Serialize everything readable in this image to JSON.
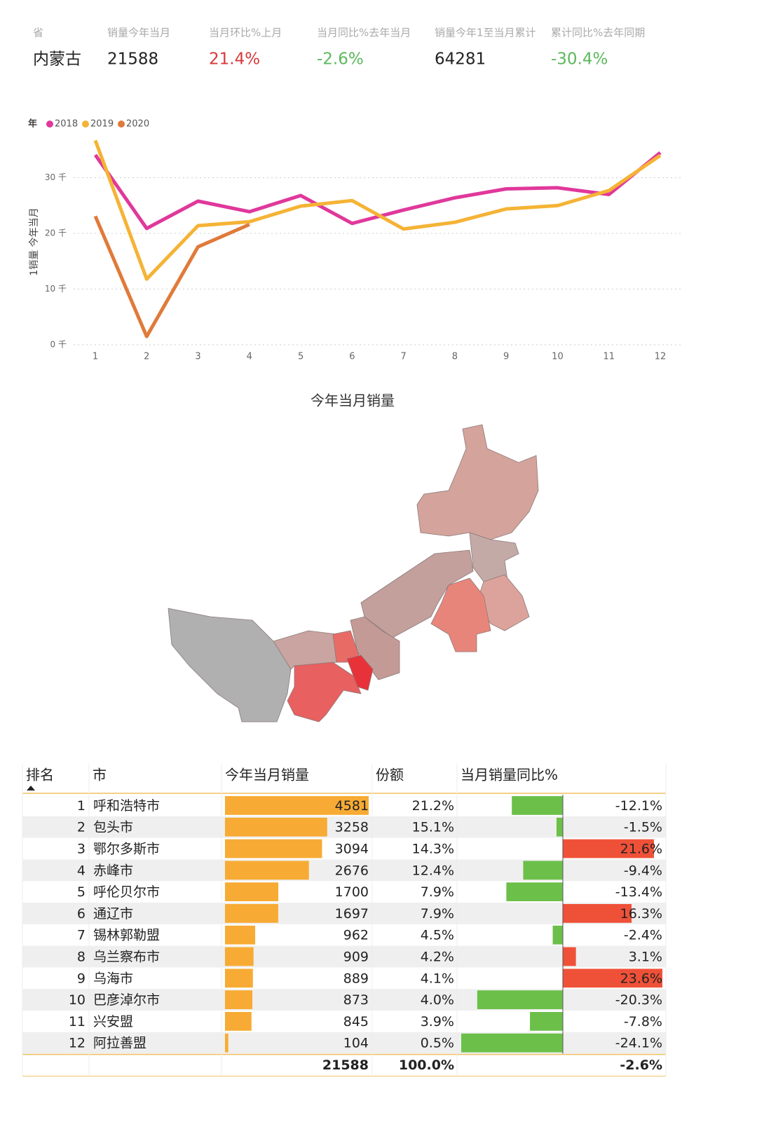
{
  "kpis": {
    "labels": [
      "省",
      "销量今年当月",
      "当月环比%上月",
      "当月同比%去年当月",
      "销量今年1至当月累计",
      "累计同比%去年同期"
    ],
    "values": [
      "内蒙古",
      "21588",
      "21.4%",
      "-2.6%",
      "64281",
      "-30.4%"
    ],
    "colors": [
      "#222222",
      "#222222",
      "#d8383a",
      "#5cb85c",
      "#222222",
      "#5cb85c"
    ]
  },
  "chart_data": {
    "type": "line",
    "legend_title": "年",
    "ylabel": "1销量 今年当月",
    "categories": [
      "1",
      "2",
      "3",
      "4",
      "5",
      "6",
      "7",
      "8",
      "9",
      "10",
      "11",
      "12"
    ],
    "series": [
      {
        "name": "2018",
        "color": "#e0389b",
        "values": [
          34100,
          20900,
          25800,
          23900,
          26800,
          21800,
          24200,
          26400,
          28000,
          28200,
          27000,
          34500
        ]
      },
      {
        "name": "2019",
        "color": "#f5b335",
        "values": [
          36700,
          11800,
          21400,
          22100,
          24900,
          25900,
          20800,
          22000,
          24400,
          25000,
          27700,
          34000
        ]
      },
      {
        "name": "2020",
        "color": "#e07a3a",
        "values": [
          23100,
          1500,
          17600,
          21600,
          null,
          null,
          null,
          null,
          null,
          null,
          null,
          null
        ]
      }
    ],
    "ylim": [
      0,
      37000
    ],
    "yticks": [
      {
        "value": 0,
        "label": "0 千"
      },
      {
        "value": 10000,
        "label": "10 千"
      },
      {
        "value": 20000,
        "label": "20 千"
      },
      {
        "value": 30000,
        "label": "30 千"
      }
    ],
    "grid": true
  },
  "map": {
    "title": "今年当月销量"
  },
  "table": {
    "headers": [
      "排名",
      "市",
      "今年当月销量",
      "份额",
      "当月销量同比%"
    ],
    "rows": [
      {
        "rank": "1",
        "city": "呼和浩特市",
        "sales": 4581,
        "share": "21.2%",
        "yoy": -12.1,
        "yoy_label": "-12.1%"
      },
      {
        "rank": "2",
        "city": "包头市",
        "sales": 3258,
        "share": "15.1%",
        "yoy": -1.5,
        "yoy_label": "-1.5%"
      },
      {
        "rank": "3",
        "city": "鄂尔多斯市",
        "sales": 3094,
        "share": "14.3%",
        "yoy": 21.6,
        "yoy_label": "21.6%"
      },
      {
        "rank": "4",
        "city": "赤峰市",
        "sales": 2676,
        "share": "12.4%",
        "yoy": -9.4,
        "yoy_label": "-9.4%"
      },
      {
        "rank": "5",
        "city": "呼伦贝尔市",
        "sales": 1700,
        "share": "7.9%",
        "yoy": -13.4,
        "yoy_label": "-13.4%"
      },
      {
        "rank": "6",
        "city": "通辽市",
        "sales": 1697,
        "share": "7.9%",
        "yoy": 16.3,
        "yoy_label": "16.3%"
      },
      {
        "rank": "7",
        "city": "锡林郭勒盟",
        "sales": 962,
        "share": "4.5%",
        "yoy": -2.4,
        "yoy_label": "-2.4%"
      },
      {
        "rank": "8",
        "city": "乌兰察布市",
        "sales": 909,
        "share": "4.2%",
        "yoy": 3.1,
        "yoy_label": "3.1%"
      },
      {
        "rank": "9",
        "city": "乌海市",
        "sales": 889,
        "share": "4.1%",
        "yoy": 23.6,
        "yoy_label": "23.6%"
      },
      {
        "rank": "10",
        "city": "巴彦淖尔市",
        "sales": 873,
        "share": "4.0%",
        "yoy": -20.3,
        "yoy_label": "-20.3%"
      },
      {
        "rank": "11",
        "city": "兴安盟",
        "sales": 845,
        "share": "3.9%",
        "yoy": -7.8,
        "yoy_label": "-7.8%"
      },
      {
        "rank": "12",
        "city": "阿拉善盟",
        "sales": 104,
        "share": "0.5%",
        "yoy": -24.1,
        "yoy_label": "-24.1%"
      }
    ],
    "total": {
      "sales": 21588,
      "share": "100.0%",
      "yoy_label": "-2.6%"
    },
    "bar_color": "#f7ab34",
    "neg_color": "#6cc04a",
    "pos_color": "#ef5138"
  }
}
